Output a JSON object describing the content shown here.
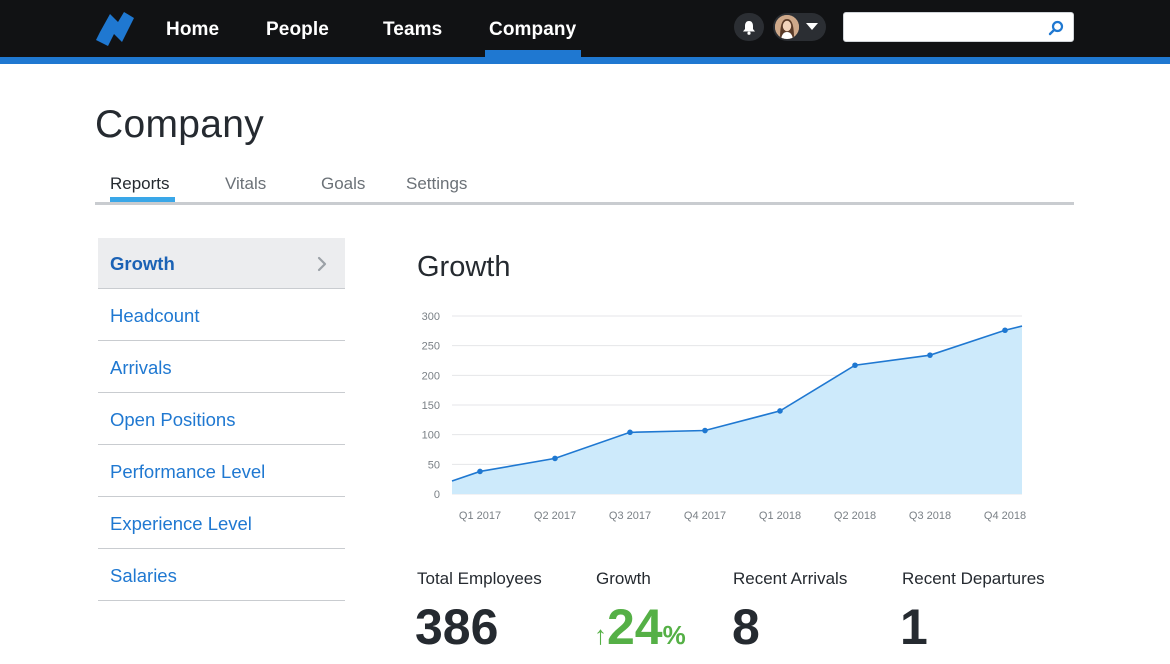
{
  "nav": {
    "items": [
      {
        "label": "Home"
      },
      {
        "label": "People"
      },
      {
        "label": "Teams"
      },
      {
        "label": "Company"
      }
    ],
    "active": "Company",
    "search_placeholder": "",
    "icons": {
      "logo": "brand-logo-icon",
      "bell": "bell-icon",
      "search": "search-icon",
      "caret": "caret-down-icon"
    }
  },
  "page": {
    "title": "Company",
    "tabs": [
      {
        "label": "Reports",
        "active": true
      },
      {
        "label": "Vitals",
        "active": false
      },
      {
        "label": "Goals",
        "active": false
      },
      {
        "label": "Settings",
        "active": false
      }
    ]
  },
  "sidebar": {
    "items": [
      {
        "label": "Growth",
        "active": true
      },
      {
        "label": "Headcount",
        "active": false
      },
      {
        "label": "Arrivals",
        "active": false
      },
      {
        "label": "Open Positions",
        "active": false
      },
      {
        "label": "Performance Level",
        "active": false
      },
      {
        "label": "Experience Level",
        "active": false
      },
      {
        "label": "Salaries",
        "active": false
      }
    ]
  },
  "chart_data": {
    "type": "area",
    "title": "Growth",
    "categories": [
      "Q1 2017",
      "Q2 2017",
      "Q3 2017",
      "Q4 2017",
      "Q1 2018",
      "Q2 2018",
      "Q3 2018",
      "Q4 2018"
    ],
    "series": [
      {
        "values": [
          38,
          60,
          104,
          107,
          140,
          217,
          234,
          276
        ]
      }
    ],
    "start_value": 22,
    "end_value": 283,
    "yticks": [
      0,
      50,
      100,
      150,
      200,
      250,
      300
    ],
    "ylim": [
      0,
      300
    ],
    "grid": true,
    "colors": {
      "line": "#1f78d1",
      "fill": "#cdeafb",
      "grid": "#e4e6e8"
    }
  },
  "stats": {
    "total_employees": {
      "label": "Total Employees",
      "value": "386"
    },
    "growth": {
      "label": "Growth",
      "arrow": "↑",
      "value": "24",
      "unit": "%"
    },
    "recent_arrivals": {
      "label": "Recent Arrivals",
      "value": "8"
    },
    "recent_departures": {
      "label": "Recent Departures",
      "value": "1"
    }
  },
  "colors": {
    "accent": "#1f78d1",
    "topbar": "#111214",
    "growth_green": "#55b046"
  }
}
